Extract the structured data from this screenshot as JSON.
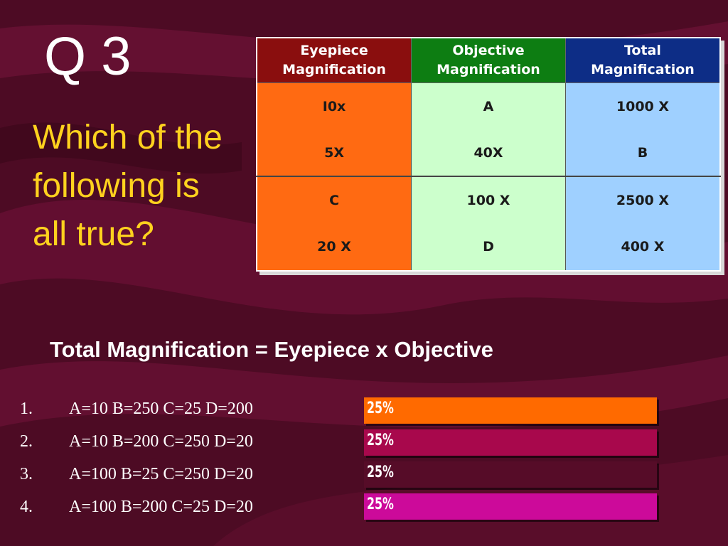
{
  "slide": {
    "title": "Q 3",
    "question": "Which of the following is all true?",
    "formula": "Total Magnification = Eyepiece x Objective"
  },
  "table": {
    "headers": [
      "Eyepiece\nMagnification",
      "Objective\nMagnification",
      "Total\nMagnification"
    ],
    "rows": [
      [
        "I0x",
        "A",
        "1000 X"
      ],
      [
        "5X",
        "40X",
        "B"
      ],
      [
        "C",
        "100 X",
        "2500 X"
      ],
      [
        "20 X",
        "D",
        "400 X"
      ]
    ]
  },
  "options": [
    {
      "number": "1.",
      "text": "A=10 B=250 C=25 D=200",
      "percent_label": "25%",
      "percent": 25,
      "color": "#ff6a00"
    },
    {
      "number": "2.",
      "text": "A=10 B=200 C=250 D=20",
      "percent_label": "25%",
      "percent": 25,
      "color": "#a8084c"
    },
    {
      "number": "3.",
      "text": "A=100 B=25 C=250 D=20",
      "percent_label": "25%",
      "percent": 25,
      "color": "#560c28"
    },
    {
      "number": "4.",
      "text": "A=100 B=200 C=25 D=20",
      "percent_label": "25%",
      "percent": 25,
      "color": "#cc0a9a"
    }
  ],
  "colors": {
    "title_text": "#ffffff",
    "question_text": "#ffd21e",
    "eyepiece_header": "#8a0e0e",
    "objective_header": "#0d7d12",
    "total_header": "#0d2d86",
    "eyepiece_cells": "#ff6a12",
    "objective_cells": "#ccffcc",
    "total_cells": "#9fd0ff"
  }
}
